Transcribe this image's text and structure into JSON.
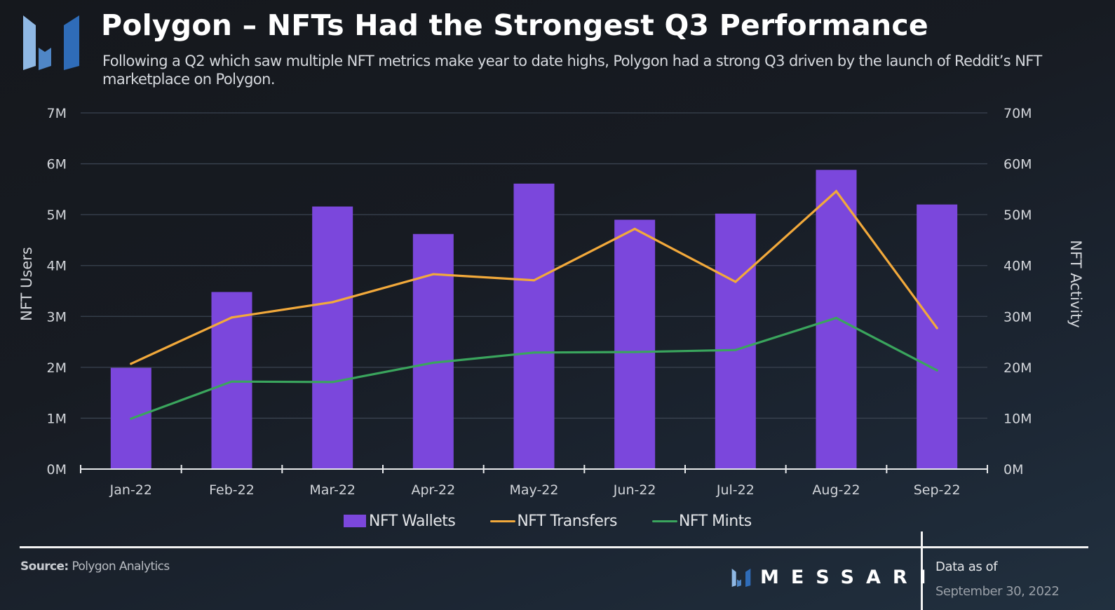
{
  "header": {
    "title": "Polygon – NFTs Had the Strongest Q3 Performance",
    "subtitle": "Following a Q2 which saw multiple NFT metrics make year to date highs, Polygon had a strong Q3 driven by the launch of Reddit’s NFT marketplace on Polygon."
  },
  "logo_icon": "messari-logo-icon",
  "chart_data": {
    "type": "bar",
    "title": "Polygon – NFTs Had the Strongest Q3 Performance",
    "categories": [
      "Jan-22",
      "Feb-22",
      "Mar-22",
      "Apr-22",
      "May-22",
      "Jun-22",
      "Jul-22",
      "Aug-22",
      "Sep-22"
    ],
    "series": [
      {
        "name": "NFT Wallets",
        "type": "bar",
        "axis": "left",
        "color": "#7b47dc",
        "values": [
          1990000,
          3480000,
          5160000,
          4620000,
          5610000,
          4900000,
          5020000,
          5880000,
          5200000
        ]
      },
      {
        "name": "NFT Transfers",
        "type": "line",
        "axis": "right",
        "color": "#f2a93b",
        "values": [
          20700000,
          29800000,
          32800000,
          38300000,
          37100000,
          47200000,
          36800000,
          54600000,
          27700000
        ]
      },
      {
        "name": "NFT Mints",
        "type": "line",
        "axis": "right",
        "color": "#3aa55d",
        "values": [
          9900000,
          17200000,
          17100000,
          20900000,
          22900000,
          23000000,
          23400000,
          29700000,
          19400000
        ]
      }
    ],
    "ylabel": "NFT Users",
    "ylabel_right": "NFT Activity",
    "xlabel": "",
    "ylim": [
      0,
      7000000
    ],
    "ylim_right": [
      0,
      70000000
    ],
    "yticks": [
      "0M",
      "1M",
      "2M",
      "3M",
      "4M",
      "5M",
      "6M",
      "7M"
    ],
    "yticks_right": [
      "0M",
      "10M",
      "20M",
      "30M",
      "40M",
      "50M",
      "60M",
      "70M"
    ],
    "grid": true,
    "legend_position": "bottom-center"
  },
  "legend": [
    {
      "label": "NFT Wallets",
      "kind": "bar",
      "color": "#7b47dc"
    },
    {
      "label": "NFT Transfers",
      "kind": "line",
      "color": "#f2a93b"
    },
    {
      "label": "NFT Mints",
      "kind": "line",
      "color": "#3aa55d"
    }
  ],
  "footer": {
    "source_label": "Source:",
    "source_value": "Polygon Analytics",
    "brand": "MESSARI",
    "as_of_label": "Data as of",
    "as_of_date": "September 30, 2022"
  }
}
